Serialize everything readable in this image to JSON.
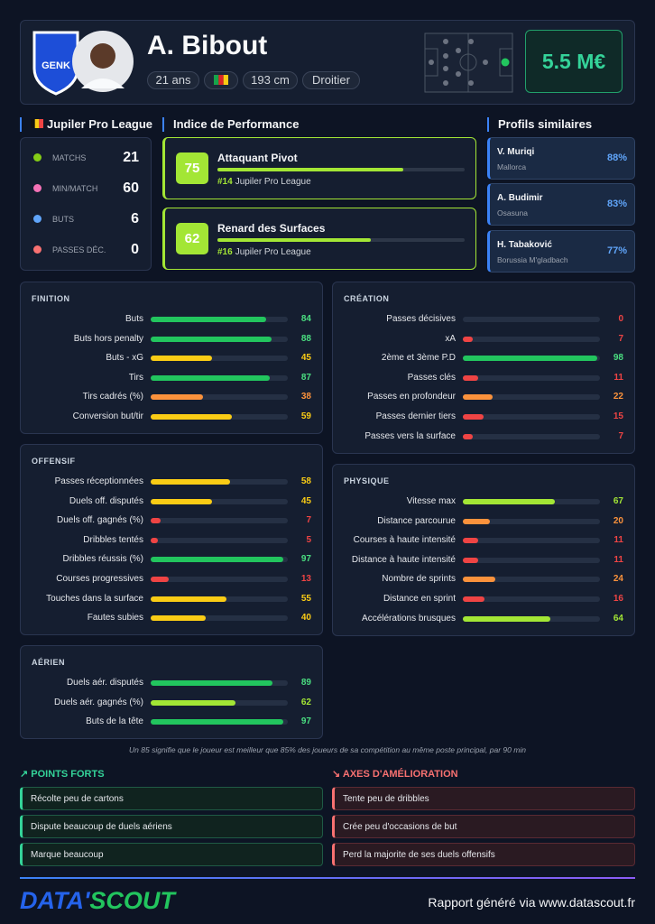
{
  "header": {
    "name": "A. Bibout",
    "pills": [
      "21 ans",
      "193 cm",
      "Droitier"
    ],
    "market_value": "5.5 M€"
  },
  "league": {
    "title": "Jupiler Pro League",
    "stats": [
      {
        "label": "MATCHS",
        "value": 21
      },
      {
        "label": "MIN/MATCH",
        "value": 60
      },
      {
        "label": "BUTS",
        "value": 6
      },
      {
        "label": "PASSES DÉC.",
        "value": 0
      }
    ]
  },
  "performance": {
    "title": "Indice de Performance",
    "items": [
      {
        "score": 75,
        "title": "Attaquant Pivot",
        "rank": "#14",
        "competition": "Jupiler Pro League"
      },
      {
        "score": 62,
        "title": "Renard des Surfaces",
        "rank": "#16",
        "competition": "Jupiler Pro League"
      }
    ]
  },
  "similar": {
    "title": "Profils similaires",
    "items": [
      {
        "name": "V. Muriqi",
        "club": "Mallorca",
        "match": "88%"
      },
      {
        "name": "A. Budimir",
        "club": "Osasuna",
        "match": "83%"
      },
      {
        "name": "H. Tabaković",
        "club": "Borussia M'gladbach",
        "match": "77%"
      }
    ]
  },
  "panels": [
    {
      "title": "FINITION",
      "rows": [
        {
          "label": "Buts",
          "value": 84
        },
        {
          "label": "Buts hors penalty",
          "value": 88
        },
        {
          "label": "Buts - xG",
          "value": 45
        },
        {
          "label": "Tirs",
          "value": 87
        },
        {
          "label": "Tirs cadrés (%)",
          "value": 38
        },
        {
          "label": "Conversion but/tir",
          "value": 59
        }
      ]
    },
    {
      "title": "CRÉATION",
      "rows": [
        {
          "label": "Passes décisives",
          "value": 0
        },
        {
          "label": "xA",
          "value": 7
        },
        {
          "label": "2ème et 3ème P.D",
          "value": 98
        },
        {
          "label": "Passes clés",
          "value": 11
        },
        {
          "label": "Passes en profondeur",
          "value": 22
        },
        {
          "label": "Passes dernier tiers",
          "value": 15
        },
        {
          "label": "Passes vers la surface",
          "value": 7
        }
      ]
    },
    {
      "title": "OFFENSIF",
      "rows": [
        {
          "label": "Passes réceptionnées",
          "value": 58
        },
        {
          "label": "Duels off. disputés",
          "value": 45
        },
        {
          "label": "Duels off. gagnés (%)",
          "value": 7
        },
        {
          "label": "Dribbles tentés",
          "value": 5
        },
        {
          "label": "Dribbles réussis (%)",
          "value": 97
        },
        {
          "label": "Courses progressives",
          "value": 13
        },
        {
          "label": "Touches dans la surface",
          "value": 55
        },
        {
          "label": "Fautes subies",
          "value": 40
        }
      ]
    },
    {
      "title": "PHYSIQUE",
      "rows": [
        {
          "label": "Vitesse max",
          "value": 67
        },
        {
          "label": "Distance parcourue",
          "value": 20
        },
        {
          "label": "Courses à haute intensité",
          "value": 11
        },
        {
          "label": "Distance à haute intensité",
          "value": 11
        },
        {
          "label": "Nombre de sprints",
          "value": 24
        },
        {
          "label": "Distance en sprint",
          "value": 16
        },
        {
          "label": "Accélérations brusques",
          "value": 64
        }
      ]
    },
    {
      "title": "AÉRIEN",
      "rows": [
        {
          "label": "Duels aér. disputés",
          "value": 89
        },
        {
          "label": "Duels aér. gagnés (%)",
          "value": 62
        },
        {
          "label": "Buts de la tête",
          "value": 97
        }
      ]
    }
  ],
  "footnote": "Un 85 signifie que le joueur est meilleur que 85% des joueurs de sa compétition au même poste principal, par 90 min",
  "strengths": {
    "title": "POINTS FORTS",
    "items": [
      "Récolte peu de cartons",
      "Dispute beaucoup de duels aériens",
      "Marque beaucoup"
    ]
  },
  "improvements": {
    "title": "AXES D'AMÉLIORATION",
    "items": [
      "Tente peu de dribbles",
      "Crée peu d'occasions de but",
      "Perd la majorite de ses duels offensifs"
    ]
  },
  "footer": {
    "logo_a": "DATA'",
    "logo_b": "SCOUT",
    "text": "Rapport généré via www.datascout.fr"
  }
}
